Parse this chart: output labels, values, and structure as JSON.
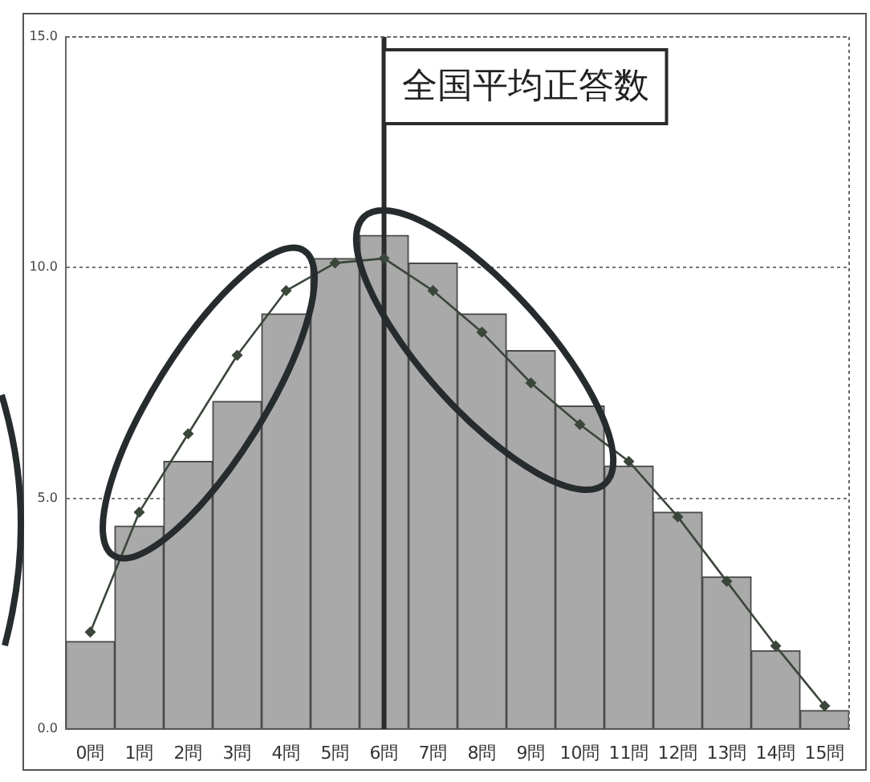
{
  "chart_data": {
    "type": "bar",
    "categories": [
      "0問",
      "1問",
      "2問",
      "3問",
      "4問",
      "5問",
      "6問",
      "7問",
      "8問",
      "9問",
      "10問",
      "11問",
      "12問",
      "13問",
      "14問",
      "15問"
    ],
    "series": [
      {
        "color": "#a9a9a9",
        "values": [
          1.9,
          4.4,
          5.8,
          7.1,
          9.0,
          10.2,
          10.7,
          10.1,
          9.0,
          8.2,
          7.0,
          5.7,
          4.7,
          3.3,
          1.7,
          0.4
        ]
      },
      {
        "type": "line",
        "color": "#3b463b",
        "values": [
          2.1,
          4.7,
          6.4,
          8.1,
          9.5,
          10.1,
          10.2,
          9.5,
          8.6,
          7.5,
          6.6,
          5.8,
          4.6,
          3.2,
          1.8,
          0.5
        ]
      }
    ],
    "marker": "diamond",
    "ylim": [
      0,
      15
    ],
    "yticks": [
      {
        "value": 0,
        "label": "0.0"
      },
      {
        "value": 5,
        "label": "5.0"
      },
      {
        "value": 10,
        "label": "10.0"
      },
      {
        "value": 15,
        "label": "15.0"
      }
    ],
    "grid": "y",
    "ref_lines": [
      {
        "axis": "x",
        "value": "6問",
        "label": "全国平均正答数",
        "color": "#2b2b2b"
      }
    ]
  }
}
